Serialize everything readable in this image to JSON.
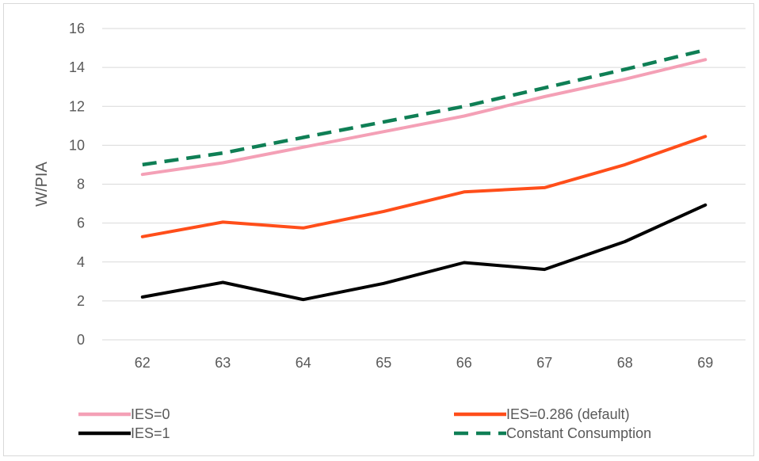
{
  "chart_data": {
    "type": "line",
    "title": "",
    "xlabel": "",
    "ylabel": "W/PIA",
    "categories": [
      "62",
      "63",
      "64",
      "65",
      "66",
      "67",
      "68",
      "69"
    ],
    "ylim": [
      0,
      16
    ],
    "yticks": [
      0,
      2,
      4,
      6,
      8,
      10,
      12,
      14,
      16
    ],
    "grid": true,
    "legend_position": "bottom",
    "series": [
      {
        "name": "IES=0",
        "color": "#f4a0b6",
        "dash": "solid",
        "values": [
          8.5,
          9.1,
          9.9,
          10.7,
          11.5,
          12.5,
          13.4,
          14.4
        ]
      },
      {
        "name": "IES=0.286 (default)",
        "color": "#ff4e1a",
        "dash": "solid",
        "values": [
          5.3,
          6.05,
          5.75,
          6.6,
          7.6,
          7.82,
          9.0,
          10.45
        ]
      },
      {
        "name": "IES=1",
        "color": "#000000",
        "dash": "solid",
        "values": [
          2.2,
          2.95,
          2.07,
          2.9,
          3.97,
          3.62,
          5.05,
          6.93
        ]
      },
      {
        "name": "Constant Consumption",
        "color": "#0f7f55",
        "dash": "dashed",
        "values": [
          9.0,
          9.6,
          10.4,
          11.2,
          12.0,
          12.95,
          13.9,
          14.9
        ]
      }
    ]
  }
}
